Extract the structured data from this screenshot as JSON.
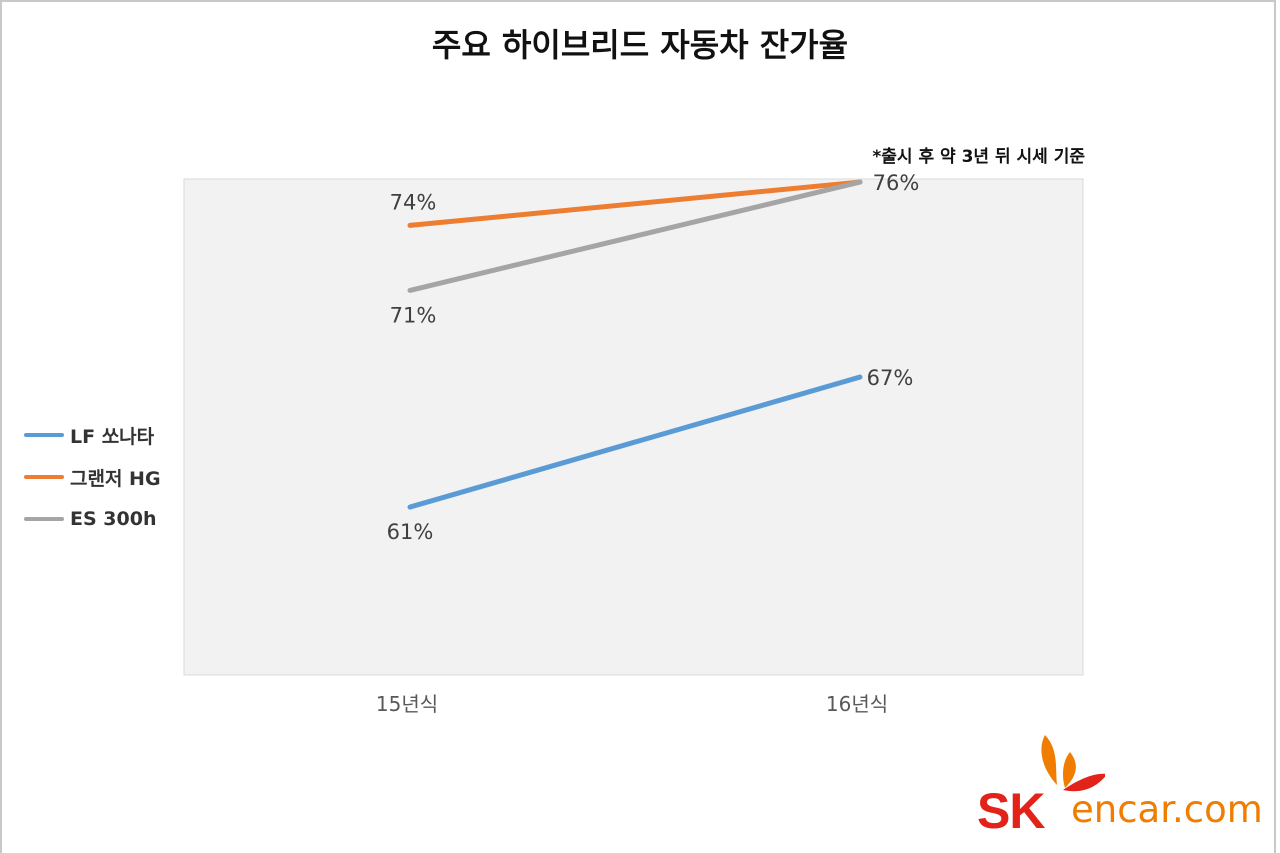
{
  "title": "주요 하이브리드 자동차 잔가율",
  "note": "*출시 후 약 3년 뒤 시세 기준",
  "logo": {
    "brand": "SK",
    "site": "encar.com"
  },
  "chart_data": {
    "type": "line",
    "title": "주요 하이브리드 자동차 잔가율",
    "categories": [
      "15년식",
      "16년식"
    ],
    "ylim": [
      50,
      80
    ],
    "grid": false,
    "legend_position": "left",
    "series": [
      {
        "name": "LF 쏘나타",
        "values": [
          61,
          67
        ],
        "labels": [
          "61%",
          "67%"
        ],
        "color": "#5b9bd5"
      },
      {
        "name": "그랜저 HG",
        "values": [
          74,
          76
        ],
        "labels": [
          "74%",
          "76%"
        ],
        "color": "#ed7d31"
      },
      {
        "name": "ES 300h",
        "values": [
          71,
          76
        ],
        "labels": [
          "71%",
          ""
        ],
        "color": "#a5a5a5"
      }
    ]
  }
}
